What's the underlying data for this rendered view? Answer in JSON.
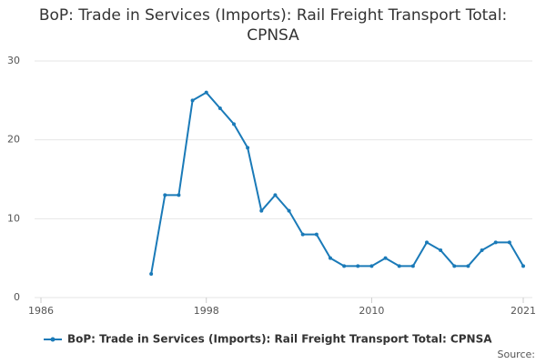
{
  "chart_data": {
    "type": "line",
    "title": "BoP: Trade in Services (Imports): Rail Freight Transport Total: CPNSA",
    "source": "Source:",
    "x": [
      1994,
      1995,
      1996,
      1997,
      1998,
      1999,
      2000,
      2001,
      2002,
      2003,
      2004,
      2005,
      2006,
      2007,
      2008,
      2009,
      2010,
      2011,
      2012,
      2013,
      2014,
      2015,
      2016,
      2017,
      2018,
      2019,
      2020,
      2021
    ],
    "series": [
      {
        "name": "BoP: Trade in Services (Imports): Rail Freight Transport Total: CPNSA",
        "color": "#1a7ab8",
        "values": [
          3,
          13,
          13,
          25,
          26,
          24,
          22,
          19,
          11,
          13,
          11,
          8,
          8,
          5,
          4,
          4,
          4,
          5,
          4,
          4,
          7,
          6,
          4,
          4,
          6,
          7,
          7,
          4
        ]
      }
    ],
    "xlim": [
      1986,
      2021
    ],
    "xticks": [
      1986,
      1998,
      2010,
      2021
    ],
    "ylim": [
      0,
      30
    ],
    "yticks": [
      0,
      10,
      20,
      30
    ],
    "grid": true
  }
}
